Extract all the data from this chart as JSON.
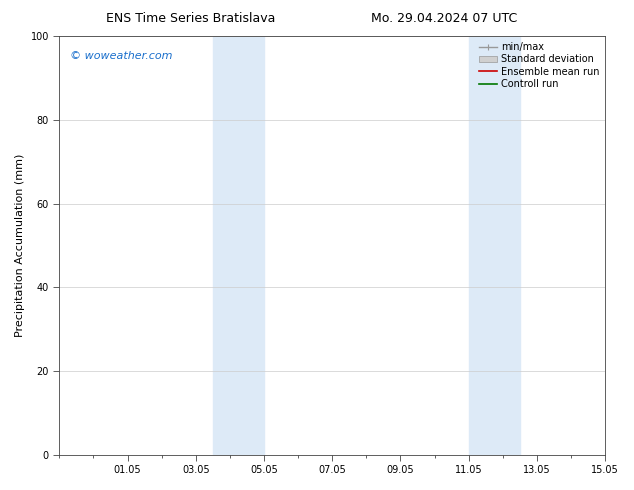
{
  "title_left": "ENS Time Series Bratislava",
  "title_right": "Mo. 29.04.2024 07 UTC",
  "ylabel": "Precipitation Accumulation (mm)",
  "watermark": "© woweather.com",
  "watermark_color": "#1a6fcc",
  "ylim": [
    0,
    100
  ],
  "yticks": [
    0,
    20,
    40,
    60,
    80,
    100
  ],
  "xtick_labels": [
    "01.05",
    "03.05",
    "05.05",
    "07.05",
    "09.05",
    "11.05",
    "13.05",
    "15.05"
  ],
  "shade_color": "#ddeaf7",
  "bg_color": "#ffffff",
  "plot_bg_color": "#ffffff",
  "title_fontsize": 9,
  "tick_fontsize": 7,
  "legend_fontsize": 7,
  "ylabel_fontsize": 8
}
